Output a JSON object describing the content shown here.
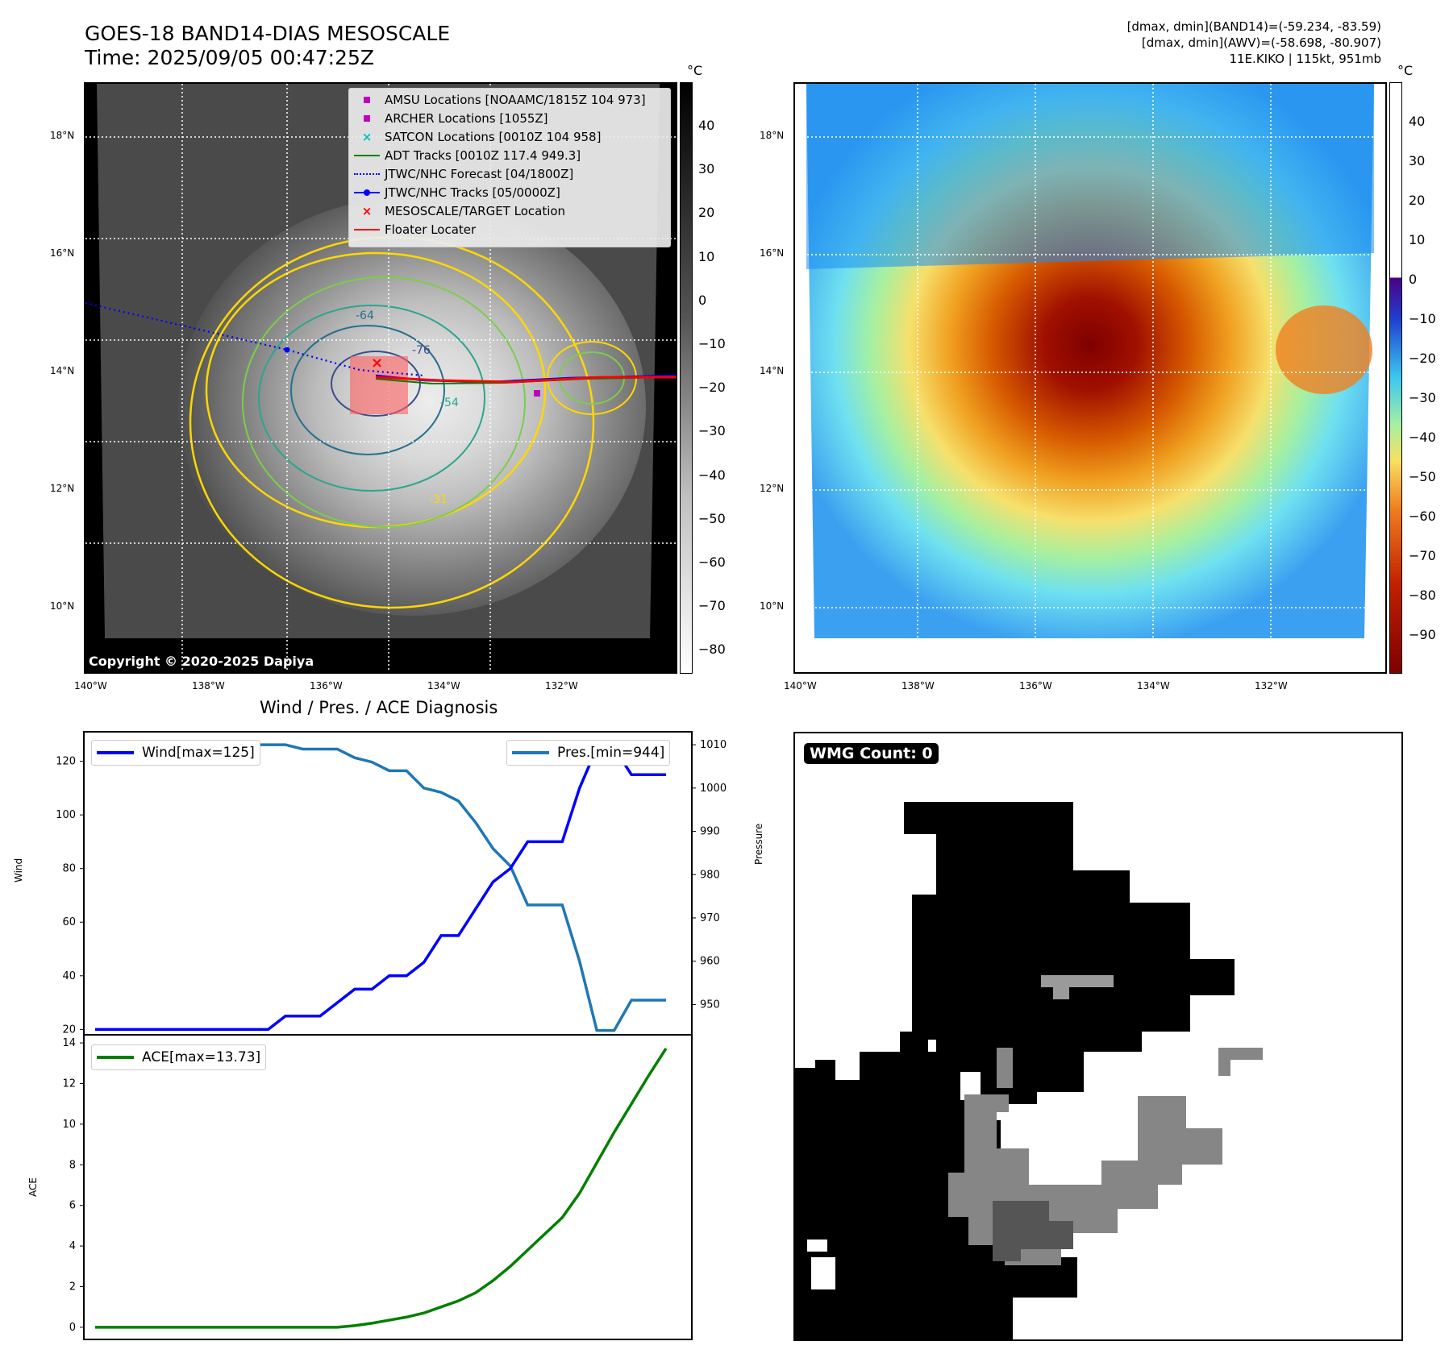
{
  "header": {
    "title_line1": "GOES-18 BAND14-DIAS MESOSCALE",
    "title_line2": "Time: 2025/09/05 00:47:25Z",
    "info_line1": "[dmax, dmin](BAND14)=(-59.234, -83.59)",
    "info_line2": "[dmax, dmin](AWV)=(-58.698, -80.907)",
    "info_line3": "11E.KIKO | 115kt, 951mb"
  },
  "map": {
    "lat_labels": [
      "18°N",
      "16°N",
      "14°N",
      "12°N",
      "10°N"
    ],
    "lon_labels": [
      "140°W",
      "138°W",
      "136°W",
      "134°W",
      "132°W"
    ],
    "copyright": "Copyright © 2020-2025 Dapiya",
    "contour_labels": [
      "-64",
      "-76",
      "-54",
      "-31"
    ],
    "legend": [
      {
        "label": "AMSU Locations [NOAAMC/1815Z 104 973]",
        "symbol": "square",
        "color": "#bf00bf"
      },
      {
        "label": "ARCHER Locations [1055Z]",
        "symbol": "square",
        "color": "#bf00bf"
      },
      {
        "label": "SATCON Locations [0010Z 104 958]",
        "symbol": "x",
        "color": "#00bfbf"
      },
      {
        "label": "ADT Tracks [0010Z 117.4 949.3]",
        "symbol": "line",
        "color": "#008000"
      },
      {
        "label": "JTWC/NHC Forecast [04/1800Z]",
        "symbol": "dotted",
        "color": "#0000ff"
      },
      {
        "label": "JTWC/NHC Tracks [05/0000Z]",
        "symbol": "line-dot",
        "color": "#0000ff"
      },
      {
        "label": "MESOSCALE/TARGET Location",
        "symbol": "x",
        "color": "#ff0000"
      },
      {
        "label": "Floater Locater",
        "symbol": "line",
        "color": "#ff0000"
      }
    ]
  },
  "colorbar_left": {
    "unit": "°C",
    "ticks": [
      "40",
      "30",
      "20",
      "10",
      "0",
      "−10",
      "−20",
      "−30",
      "−40",
      "−50",
      "−60",
      "−70",
      "−80"
    ]
  },
  "colorbar_right": {
    "unit": "°C",
    "ticks": [
      "40",
      "30",
      "20",
      "10",
      "0",
      "−10",
      "−20",
      "−30",
      "−40",
      "−50",
      "−60",
      "−70",
      "−80",
      "−90"
    ]
  },
  "chart_data": [
    {
      "type": "line",
      "title": "Wind / Pres. / ACE Diagnosis",
      "ylabel": "Wind",
      "y2label": "Pressure",
      "ylim": [
        18,
        131
      ],
      "y2lim": [
        943,
        1013
      ],
      "yticks": [
        20,
        40,
        60,
        80,
        100,
        120
      ],
      "y2ticks": [
        950,
        960,
        970,
        980,
        990,
        1000,
        1010
      ],
      "series": [
        {
          "name": "Wind[max=125]",
          "color": "#0000ff",
          "axis": "left",
          "values": [
            20,
            20,
            20,
            20,
            20,
            20,
            20,
            20,
            20,
            20,
            20,
            25,
            25,
            25,
            30,
            35,
            35,
            40,
            40,
            45,
            55,
            55,
            65,
            75,
            80,
            90,
            90,
            90,
            110,
            125,
            125,
            115,
            115,
            115
          ]
        },
        {
          "name": "Pres.[min=944]",
          "color": "#1f77b4",
          "axis": "right",
          "values": [
            1010,
            1010,
            1010,
            1010,
            1010,
            1010,
            1010,
            1010,
            1010,
            1010,
            1010,
            1010,
            1009,
            1009,
            1009,
            1007,
            1006,
            1004,
            1004,
            1000,
            999,
            997,
            992,
            986,
            982,
            973,
            973,
            973,
            960,
            944,
            944,
            951,
            951,
            951
          ]
        }
      ]
    },
    {
      "type": "line",
      "ylabel": "ACE",
      "ylim": [
        -0.6,
        14.4
      ],
      "yticks": [
        0,
        2,
        4,
        6,
        8,
        10,
        12,
        14
      ],
      "series": [
        {
          "name": "ACE[max=13.73]",
          "color": "#008000",
          "axis": "left",
          "values": [
            0,
            0,
            0,
            0,
            0,
            0,
            0,
            0,
            0,
            0,
            0,
            0,
            0,
            0,
            0,
            0.08,
            0.2,
            0.35,
            0.5,
            0.7,
            1.0,
            1.3,
            1.7,
            2.3,
            3.0,
            3.8,
            4.6,
            5.4,
            6.6,
            8.1,
            9.6,
            11.0,
            12.4,
            13.73
          ]
        }
      ]
    }
  ],
  "wmg": {
    "label": "WMG Count: 0"
  }
}
